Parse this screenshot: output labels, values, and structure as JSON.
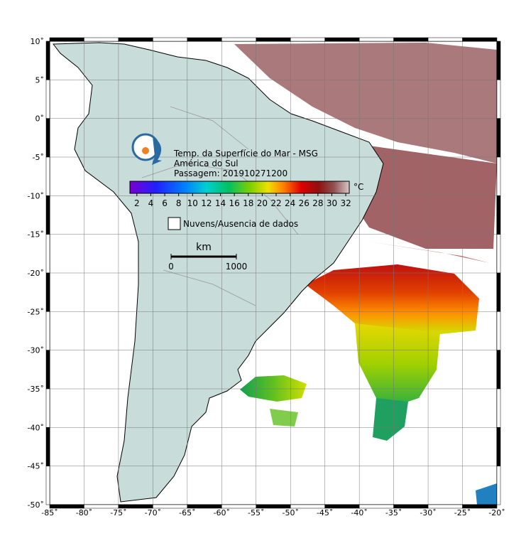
{
  "map": {
    "title": "Temp. da Superfície do Mar - MSG",
    "region": "América do Sul",
    "pass": "Passagem: 201910271200",
    "xlim": [
      -85,
      -20
    ],
    "ylim": [
      -50,
      10
    ],
    "lon_ticks": [
      {
        "value": -85,
        "label": "-85˚"
      },
      {
        "value": -80,
        "label": "-80˚"
      },
      {
        "value": -75,
        "label": "-75˚"
      },
      {
        "value": -70,
        "label": "-70˚"
      },
      {
        "value": -65,
        "label": "-65˚"
      },
      {
        "value": -60,
        "label": "-60˚"
      },
      {
        "value": -55,
        "label": "-55˚"
      },
      {
        "value": -50,
        "label": "-50˚"
      },
      {
        "value": -45,
        "label": "-45˚"
      },
      {
        "value": -40,
        "label": "-40˚"
      },
      {
        "value": -35,
        "label": "-35˚"
      },
      {
        "value": -30,
        "label": "-30˚"
      },
      {
        "value": -25,
        "label": "-25˚"
      },
      {
        "value": -20,
        "label": "-20˚"
      }
    ],
    "lat_ticks": [
      {
        "value": 10,
        "label": "10˚"
      },
      {
        "value": 5,
        "label": "5˚"
      },
      {
        "value": 0,
        "label": "0˚"
      },
      {
        "value": -5,
        "label": "-5˚"
      },
      {
        "value": -10,
        "label": "-10˚"
      },
      {
        "value": -15,
        "label": "-15˚"
      },
      {
        "value": -20,
        "label": "-20˚"
      },
      {
        "value": -25,
        "label": "-25˚"
      },
      {
        "value": -30,
        "label": "-30˚"
      },
      {
        "value": -35,
        "label": "-35˚"
      },
      {
        "value": -40,
        "label": "-40˚"
      },
      {
        "value": -45,
        "label": "-45˚"
      },
      {
        "value": -50,
        "label": "-50˚"
      }
    ],
    "grid": true,
    "colorbar": {
      "lim": [
        1,
        32.5
      ],
      "ticks": [
        2,
        4,
        6,
        8,
        10,
        12,
        14,
        16,
        18,
        20,
        22,
        24,
        26,
        28,
        30,
        32
      ],
      "unit": "°C"
    },
    "legend_missing": "Nuvens/Ausencia de dados",
    "scale": {
      "unit": "km",
      "start": "0",
      "end": "1000"
    }
  }
}
